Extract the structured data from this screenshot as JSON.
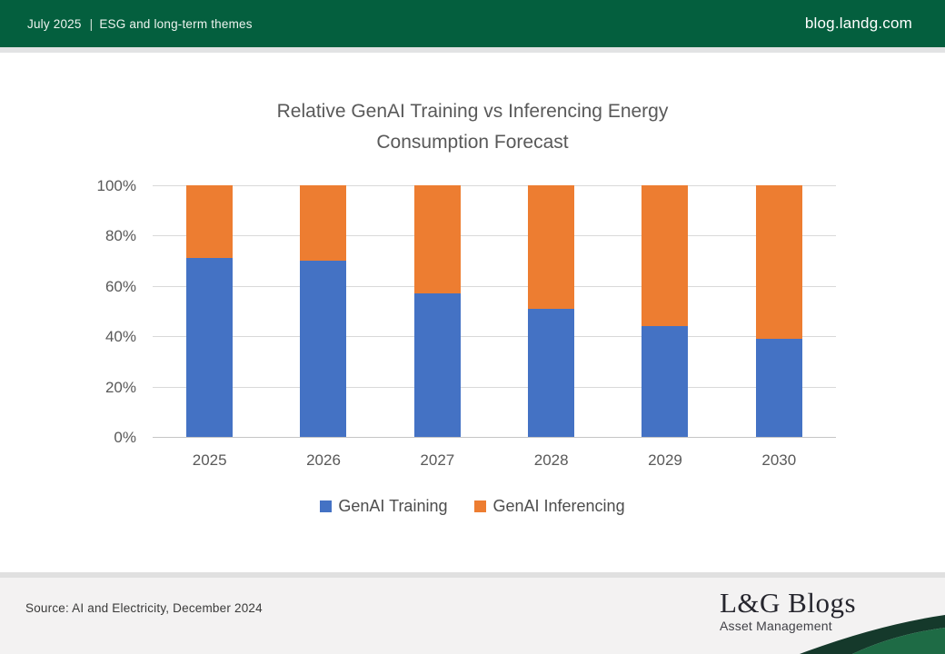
{
  "header": {
    "date": "July 2025",
    "separator": "|",
    "section": "ESG and long-term themes",
    "site": "blog.landg.com"
  },
  "chart_data": {
    "type": "bar",
    "stacked": true,
    "title": "Relative GenAI Training vs Inferencing Energy Consumption Forecast",
    "title_lines": [
      "Relative GenAI Training vs Inferencing Energy",
      "Consumption Forecast"
    ],
    "categories": [
      "2025",
      "2026",
      "2027",
      "2028",
      "2029",
      "2030"
    ],
    "series": [
      {
        "name": "GenAI Training",
        "color": "#4472C4",
        "values": [
          71,
          70,
          57,
          51,
          44,
          39
        ]
      },
      {
        "name": "GenAI Inferencing",
        "color": "#ED7D31",
        "values": [
          29,
          30,
          43,
          49,
          56,
          61
        ]
      }
    ],
    "y_ticks": [
      "0%",
      "20%",
      "40%",
      "60%",
      "80%",
      "100%"
    ],
    "ylim": [
      0,
      100
    ],
    "y_unit": "percent",
    "grid": "horizontal",
    "legend_position": "bottom"
  },
  "footer": {
    "source": "Source: AI and Electricity, December 2024",
    "logo_title": "L&G Blogs",
    "logo_subtitle": "Asset Management"
  },
  "colors": {
    "header_green": "#045f3e",
    "training_blue": "#4472C4",
    "inferencing_orange": "#ED7D31",
    "title_gray": "#595959",
    "footer_gray": "#f3f2f2",
    "swoosh_dark_green": "#15392b",
    "swoosh_mid_green": "#1e6b45"
  }
}
